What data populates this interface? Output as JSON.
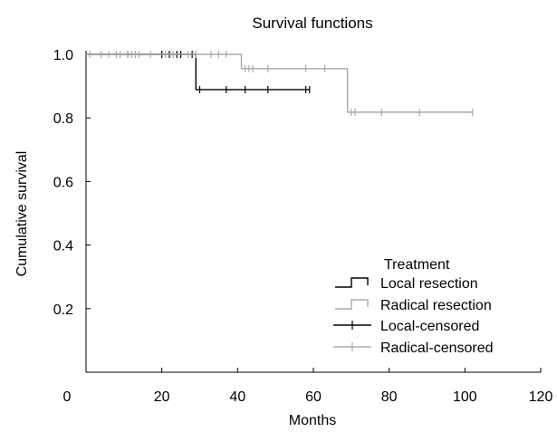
{
  "chart_data": {
    "type": "line",
    "title": "Survival functions",
    "xlabel": "Months",
    "ylabel": "Cumulative survival",
    "xlim": [
      0,
      120
    ],
    "ylim": [
      0,
      1.0
    ],
    "xticks": [
      0,
      20,
      40,
      60,
      80,
      100,
      120
    ],
    "xtick_labels": [
      "0",
      "20",
      "40",
      "60",
      "80",
      "100",
      "120"
    ],
    "yticks": [
      0.2,
      0.4,
      0.6,
      0.8,
      1.0
    ],
    "ytick_labels": [
      "0.2",
      "0.4",
      "0.6",
      "0.8",
      "1.0"
    ],
    "grid": false,
    "legend": {
      "title": "Treatment",
      "placement": "bottom-right",
      "entries": [
        "Local resection",
        "Radical resection",
        "Local-censored",
        "Radical-censored"
      ]
    },
    "series": [
      {
        "name": "Local resection",
        "color": "#000000",
        "step_x": [
          0,
          29,
          29,
          59
        ],
        "step_y": [
          1.0,
          1.0,
          0.889,
          0.889
        ],
        "censored": [
          {
            "x": 11,
            "y": 1.0
          },
          {
            "x": 20,
            "y": 1.0
          },
          {
            "x": 22,
            "y": 1.0
          },
          {
            "x": 24,
            "y": 1.0
          },
          {
            "x": 25,
            "y": 1.0
          },
          {
            "x": 28,
            "y": 1.0
          },
          {
            "x": 30,
            "y": 0.889
          },
          {
            "x": 37,
            "y": 0.889
          },
          {
            "x": 42,
            "y": 0.889
          },
          {
            "x": 48,
            "y": 0.889
          },
          {
            "x": 58,
            "y": 0.889
          },
          {
            "x": 59,
            "y": 0.889
          }
        ]
      },
      {
        "name": "Radical resection",
        "color": "#aaaaaa",
        "step_x": [
          0,
          41,
          41,
          69,
          69,
          102
        ],
        "step_y": [
          1.0,
          1.0,
          0.955,
          0.955,
          0.818,
          0.818
        ],
        "censored": [
          {
            "x": 1,
            "y": 1.0
          },
          {
            "x": 4,
            "y": 1.0
          },
          {
            "x": 6,
            "y": 1.0
          },
          {
            "x": 8,
            "y": 1.0
          },
          {
            "x": 9,
            "y": 1.0
          },
          {
            "x": 11,
            "y": 1.0
          },
          {
            "x": 12,
            "y": 1.0
          },
          {
            "x": 13,
            "y": 1.0
          },
          {
            "x": 14,
            "y": 1.0
          },
          {
            "x": 17,
            "y": 1.0
          },
          {
            "x": 21,
            "y": 1.0
          },
          {
            "x": 23,
            "y": 1.0
          },
          {
            "x": 27,
            "y": 1.0
          },
          {
            "x": 29,
            "y": 1.0
          },
          {
            "x": 33,
            "y": 1.0
          },
          {
            "x": 35,
            "y": 1.0
          },
          {
            "x": 37,
            "y": 1.0
          },
          {
            "x": 42,
            "y": 0.955
          },
          {
            "x": 43,
            "y": 0.955
          },
          {
            "x": 44,
            "y": 0.955
          },
          {
            "x": 48,
            "y": 0.955
          },
          {
            "x": 58,
            "y": 0.955
          },
          {
            "x": 63,
            "y": 0.955
          },
          {
            "x": 70,
            "y": 0.818
          },
          {
            "x": 71,
            "y": 0.818
          },
          {
            "x": 78,
            "y": 0.818
          },
          {
            "x": 88,
            "y": 0.818
          },
          {
            "x": 102,
            "y": 0.818
          }
        ]
      }
    ]
  }
}
